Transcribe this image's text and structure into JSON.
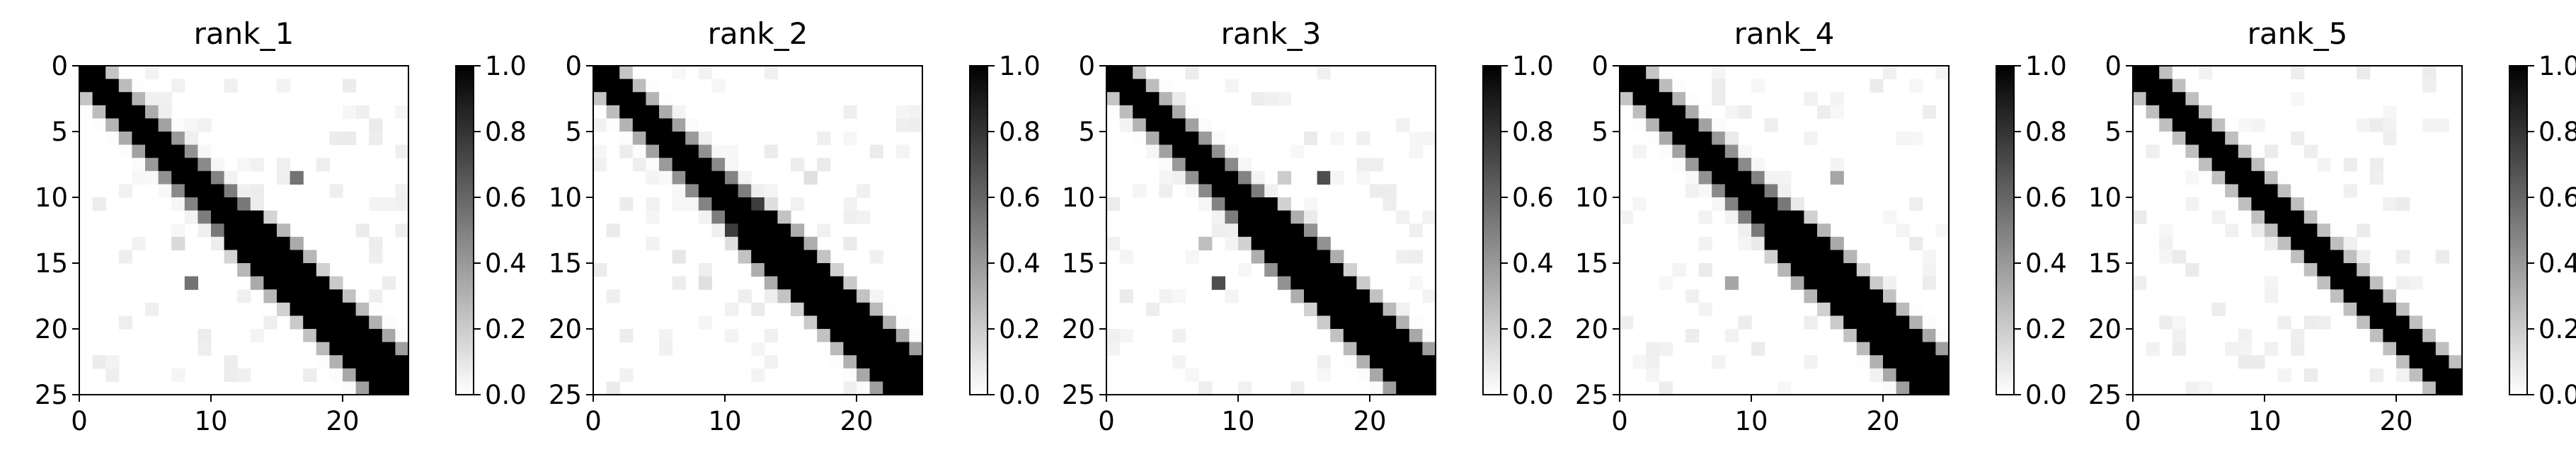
{
  "chart_data": [
    {
      "type": "heatmap",
      "title": "rank_1",
      "xlabel": "",
      "ylabel": "",
      "xlim": [
        0,
        25
      ],
      "ylim": [
        25,
        0
      ],
      "xticks": [
        "0",
        "10",
        "20"
      ],
      "yticks": [
        "0",
        "5",
        "10",
        "15",
        "20",
        "25"
      ],
      "colorbar": {
        "cmap": "gray_r",
        "range": [
          0,
          1
        ],
        "ticks": [
          "0.0",
          "0.2",
          "0.4",
          "0.6",
          "0.8",
          "1.0"
        ]
      },
      "grid": false,
      "pattern": {
        "diag_offset": 0,
        "core_halfwidth": [
          1.2,
          2.6
        ],
        "blob_center": [
          15,
          14
        ],
        "blob_radius": [
          2.6,
          4.2
        ],
        "outliers": [
          {
            "row": 8,
            "col": 16,
            "v": 0.55
          },
          {
            "row": 16,
            "col": 8,
            "v": 0.55
          },
          {
            "row": 13,
            "col": 7,
            "v": 0.15
          }
        ]
      }
    },
    {
      "type": "heatmap",
      "title": "rank_2",
      "xlabel": "",
      "ylabel": "",
      "xlim": [
        0,
        25
      ],
      "ylim": [
        25,
        0
      ],
      "xticks": [
        "0",
        "10",
        "20"
      ],
      "yticks": [
        "0",
        "5",
        "10",
        "15",
        "20",
        "25"
      ],
      "colorbar": {
        "cmap": "gray_r",
        "range": [
          0,
          1
        ],
        "ticks": [
          "0.0",
          "0.2",
          "0.4",
          "0.6",
          "0.8",
          "1.0"
        ]
      },
      "grid": false,
      "pattern": {
        "diag_offset": 0,
        "core_halfwidth": [
          1.2,
          2.6
        ],
        "blob_center": [
          14,
          14
        ],
        "blob_radius": [
          2.6,
          4.4
        ],
        "outliers": [
          {
            "row": 8,
            "col": 16,
            "v": 0.12
          },
          {
            "row": 16,
            "col": 8,
            "v": 0.12
          },
          {
            "row": 14,
            "col": 6,
            "v": 0.1
          }
        ]
      }
    },
    {
      "type": "heatmap",
      "title": "rank_3",
      "xlabel": "",
      "ylabel": "",
      "xlim": [
        0,
        25
      ],
      "ylim": [
        25,
        0
      ],
      "xticks": [
        "0",
        "10",
        "20"
      ],
      "yticks": [
        "0",
        "5",
        "10",
        "15",
        "20",
        "25"
      ],
      "colorbar": {
        "cmap": "gray_r",
        "range": [
          0,
          1
        ],
        "ticks": [
          "0.0",
          "0.2",
          "0.4",
          "0.6",
          "0.8",
          "1.0"
        ]
      },
      "grid": false,
      "pattern": {
        "diag_offset": 0,
        "core_halfwidth": [
          1.2,
          2.6
        ],
        "blob_center": [
          14,
          14
        ],
        "blob_radius": [
          2.7,
          4.5
        ],
        "outliers": [
          {
            "row": 8,
            "col": 16,
            "v": 0.7
          },
          {
            "row": 16,
            "col": 8,
            "v": 0.7
          },
          {
            "row": 8,
            "col": 13,
            "v": 0.2
          },
          {
            "row": 13,
            "col": 7,
            "v": 0.25
          }
        ]
      }
    },
    {
      "type": "heatmap",
      "title": "rank_4",
      "xlabel": "",
      "ylabel": "",
      "xlim": [
        0,
        25
      ],
      "ylim": [
        25,
        0
      ],
      "xticks": [
        "0",
        "10",
        "20"
      ],
      "yticks": [
        "0",
        "5",
        "10",
        "15",
        "20",
        "25"
      ],
      "colorbar": {
        "cmap": "gray_r",
        "range": [
          0,
          1
        ],
        "ticks": [
          "0.0",
          "0.2",
          "0.4",
          "0.6",
          "0.8",
          "1.0"
        ]
      },
      "grid": false,
      "pattern": {
        "diag_offset": 0,
        "core_halfwidth": [
          1.2,
          2.6
        ],
        "blob_center": [
          15,
          14
        ],
        "blob_radius": [
          2.6,
          4.4
        ],
        "outliers": [
          {
            "row": 8,
            "col": 16,
            "v": 0.35
          },
          {
            "row": 16,
            "col": 8,
            "v": 0.35
          }
        ]
      }
    },
    {
      "type": "heatmap",
      "title": "rank_5",
      "xlabel": "",
      "ylabel": "",
      "xlim": [
        0,
        25
      ],
      "ylim": [
        25,
        0
      ],
      "xticks": [
        "0",
        "10",
        "20"
      ],
      "yticks": [
        "0",
        "5",
        "10",
        "15",
        "20",
        "25"
      ],
      "colorbar": {
        "cmap": "gray_r",
        "range": [
          0,
          1
        ],
        "ticks": [
          "0.0",
          "0.2",
          "0.4",
          "0.6",
          "0.8",
          "1.0"
        ]
      },
      "grid": false,
      "pattern": {
        "diag_offset": 0,
        "core_halfwidth": [
          1.3,
          1.3
        ],
        "blob_center": [
          12,
          12
        ],
        "blob_radius": [
          0,
          0
        ],
        "outliers": []
      }
    }
  ]
}
